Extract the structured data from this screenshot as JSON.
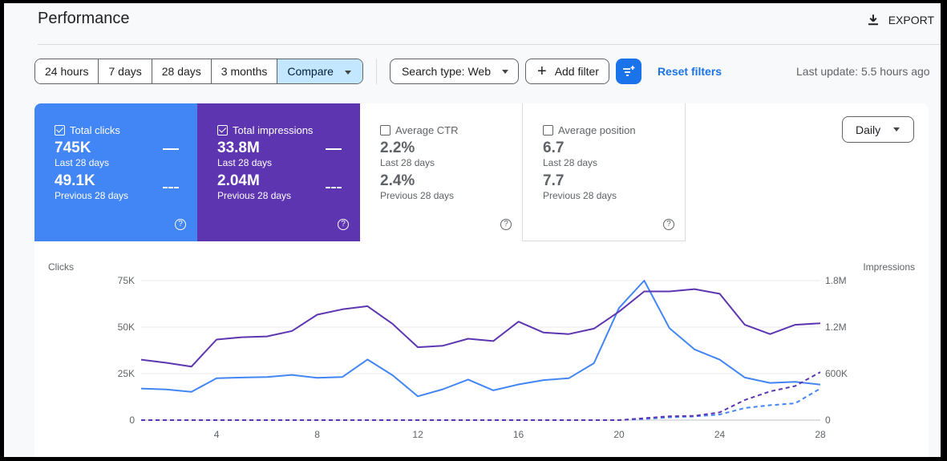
{
  "header": {
    "title": "Performance",
    "export_label": "EXPORT"
  },
  "toolbar": {
    "ranges": [
      "24 hours",
      "7 days",
      "28 days",
      "3 months"
    ],
    "compare_label": "Compare",
    "search_type_label": "Search type: Web",
    "add_filter_label": "Add filter",
    "reset_label": "Reset filters",
    "last_update": "Last update: 5.5 hours ago"
  },
  "metrics": {
    "clicks": {
      "label": "Total clicks",
      "value": "745K",
      "period": "Last 28 days",
      "prev_value": "49.1K",
      "prev_period": "Previous 28 days",
      "checked": true,
      "color": "#4285f4"
    },
    "impressions": {
      "label": "Total impressions",
      "value": "33.8M",
      "period": "Last 28 days",
      "prev_value": "2.04M",
      "prev_period": "Previous 28 days",
      "checked": true,
      "color": "#5e35b1"
    },
    "ctr": {
      "label": "Average CTR",
      "value": "2.2%",
      "period": "Last 28 days",
      "prev_value": "2.4%",
      "prev_period": "Previous 28 days",
      "checked": false
    },
    "position": {
      "label": "Average position",
      "value": "6.7",
      "period": "Last 28 days",
      "prev_value": "7.7",
      "prev_period": "Previous 28 days",
      "checked": false
    }
  },
  "granularity": {
    "label": "Daily"
  },
  "chart_data": {
    "type": "line",
    "ylabel_left": "Clicks",
    "ylabel_right": "Impressions",
    "x": [
      1,
      2,
      3,
      4,
      5,
      6,
      7,
      8,
      9,
      10,
      11,
      12,
      13,
      14,
      15,
      16,
      17,
      18,
      19,
      20,
      21,
      22,
      23,
      24,
      25,
      26,
      27,
      28
    ],
    "x_ticks": [
      4,
      8,
      12,
      16,
      20,
      24,
      28
    ],
    "y_left_ticks": [
      "0",
      "25K",
      "50K",
      "75K"
    ],
    "y_left_range": [
      0,
      75000
    ],
    "y_right_ticks": [
      "0",
      "600K",
      "1.2M",
      "1.8M"
    ],
    "y_right_range": [
      0,
      1800000
    ],
    "grid": true,
    "series": [
      {
        "axis": "left",
        "style": "solid",
        "color": "#4285f4",
        "values": [
          17000,
          16500,
          15200,
          22500,
          22900,
          23200,
          24300,
          22700,
          23200,
          32600,
          24100,
          12800,
          16600,
          21800,
          16000,
          19200,
          21500,
          22500,
          30600,
          60300,
          75000,
          49500,
          38000,
          32500,
          22900,
          20000,
          20600,
          19100
        ]
      },
      {
        "axis": "right",
        "style": "solid",
        "color": "#5e35b1",
        "values": [
          780000,
          740000,
          690000,
          1040000,
          1070000,
          1080000,
          1150000,
          1360000,
          1430000,
          1470000,
          1240000,
          940000,
          960000,
          1050000,
          1020000,
          1270000,
          1130000,
          1110000,
          1180000,
          1400000,
          1660000,
          1660000,
          1690000,
          1630000,
          1230000,
          1110000,
          1230000,
          1250000
        ]
      },
      {
        "axis": "left",
        "style": "dashed",
        "color": "#4285f4",
        "values": [
          0,
          0,
          0,
          0,
          0,
          0,
          0,
          0,
          0,
          0,
          0,
          0,
          0,
          0,
          0,
          0,
          0,
          0,
          0,
          0,
          600,
          1500,
          2000,
          3000,
          6500,
          8000,
          9000,
          17000
        ]
      },
      {
        "axis": "right",
        "style": "dashed",
        "color": "#5e35b1",
        "values": [
          0,
          0,
          0,
          0,
          0,
          0,
          0,
          0,
          0,
          0,
          0,
          0,
          0,
          0,
          0,
          0,
          0,
          0,
          0,
          0,
          25000,
          50000,
          55000,
          100000,
          260000,
          370000,
          440000,
          620000
        ]
      }
    ]
  }
}
